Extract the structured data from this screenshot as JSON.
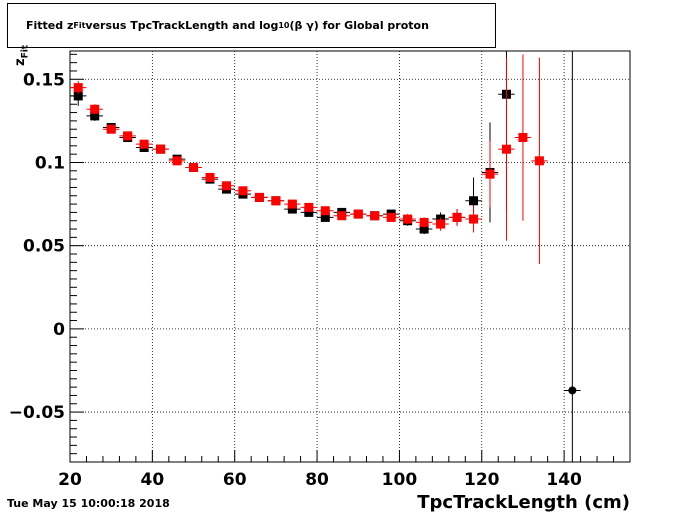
{
  "title": {
    "prefix": "Fitted  z",
    "sub": "Fit",
    "middle": "  versus TpcTrackLength and log",
    "sub2": "10",
    "suffix": " (β γ) for Global proton"
  },
  "timestamp": "Tue May 15 10:00:18 2018",
  "chart_data": {
    "type": "scatter",
    "xlabel": "TpcTrackLength (cm)",
    "ylabel_main": "z",
    "ylabel_sub": "Fit",
    "xlim": [
      20,
      156
    ],
    "ylim": [
      -0.08,
      0.167
    ],
    "x_ticks": [
      20,
      40,
      60,
      80,
      100,
      120,
      140
    ],
    "x_tick_labels": [
      "20",
      "40",
      "60",
      "80",
      "100",
      "120",
      "140"
    ],
    "y_ticks": [
      -0.05,
      0,
      0.05,
      0.1,
      0.15
    ],
    "y_tick_labels": [
      "−0.05",
      "0",
      "0.05",
      "0.1",
      "0.15"
    ],
    "grid": true,
    "series": [
      {
        "color": "#000000",
        "points": [
          {
            "x": 22,
            "y": 0.14,
            "err": 0.006
          },
          {
            "x": 26,
            "y": 0.128,
            "err": 0.003
          },
          {
            "x": 30,
            "y": 0.121,
            "err": 0.002
          },
          {
            "x": 34,
            "y": 0.115,
            "err": 0.002
          },
          {
            "x": 38,
            "y": 0.109,
            "err": 0.002
          },
          {
            "x": 42,
            "y": 0.108,
            "err": 0.002
          },
          {
            "x": 46,
            "y": 0.102,
            "err": 0.002
          },
          {
            "x": 50,
            "y": 0.097,
            "err": 0.002
          },
          {
            "x": 54,
            "y": 0.09,
            "err": 0.002
          },
          {
            "x": 58,
            "y": 0.084,
            "err": 0.002
          },
          {
            "x": 62,
            "y": 0.081,
            "err": 0.002
          },
          {
            "x": 66,
            "y": 0.079,
            "err": 0.002
          },
          {
            "x": 70,
            "y": 0.077,
            "err": 0.002
          },
          {
            "x": 74,
            "y": 0.072,
            "err": 0.002
          },
          {
            "x": 78,
            "y": 0.07,
            "err": 0.002
          },
          {
            "x": 82,
            "y": 0.067,
            "err": 0.002
          },
          {
            "x": 86,
            "y": 0.07,
            "err": 0.002
          },
          {
            "x": 90,
            "y": 0.069,
            "err": 0.002
          },
          {
            "x": 94,
            "y": 0.068,
            "err": 0.002
          },
          {
            "x": 98,
            "y": 0.069,
            "err": 0.002
          },
          {
            "x": 102,
            "y": 0.065,
            "err": 0.003
          },
          {
            "x": 106,
            "y": 0.06,
            "err": 0.003
          },
          {
            "x": 110,
            "y": 0.066,
            "err": 0.004
          },
          {
            "x": 114,
            "y": 0.067,
            "err": 0.005
          },
          {
            "x": 118,
            "y": 0.077,
            "err": 0.014
          },
          {
            "x": 122,
            "y": 0.094,
            "err": 0.03
          },
          {
            "x": 126,
            "y": 0.141,
            "err": 0.07
          },
          {
            "x": 142,
            "y": -0.037,
            "err": 0.26
          }
        ]
      },
      {
        "color": "#ff0000",
        "points": [
          {
            "x": 22,
            "y": 0.145,
            "err": 0.004
          },
          {
            "x": 26,
            "y": 0.132,
            "err": 0.003
          },
          {
            "x": 30,
            "y": 0.12,
            "err": 0.002
          },
          {
            "x": 34,
            "y": 0.116,
            "err": 0.002
          },
          {
            "x": 38,
            "y": 0.111,
            "err": 0.002
          },
          {
            "x": 42,
            "y": 0.108,
            "err": 0.002
          },
          {
            "x": 46,
            "y": 0.101,
            "err": 0.002
          },
          {
            "x": 50,
            "y": 0.097,
            "err": 0.002
          },
          {
            "x": 54,
            "y": 0.091,
            "err": 0.002
          },
          {
            "x": 58,
            "y": 0.086,
            "err": 0.002
          },
          {
            "x": 62,
            "y": 0.083,
            "err": 0.002
          },
          {
            "x": 66,
            "y": 0.079,
            "err": 0.002
          },
          {
            "x": 70,
            "y": 0.077,
            "err": 0.002
          },
          {
            "x": 74,
            "y": 0.075,
            "err": 0.002
          },
          {
            "x": 78,
            "y": 0.073,
            "err": 0.002
          },
          {
            "x": 82,
            "y": 0.071,
            "err": 0.002
          },
          {
            "x": 86,
            "y": 0.068,
            "err": 0.002
          },
          {
            "x": 90,
            "y": 0.069,
            "err": 0.002
          },
          {
            "x": 94,
            "y": 0.068,
            "err": 0.002
          },
          {
            "x": 98,
            "y": 0.067,
            "err": 0.002
          },
          {
            "x": 102,
            "y": 0.066,
            "err": 0.003
          },
          {
            "x": 106,
            "y": 0.064,
            "err": 0.003
          },
          {
            "x": 110,
            "y": 0.063,
            "err": 0.004
          },
          {
            "x": 114,
            "y": 0.067,
            "err": 0.005
          },
          {
            "x": 118,
            "y": 0.066,
            "err": 0.008
          },
          {
            "x": 122,
            "y": 0.093,
            "err": 0.02
          },
          {
            "x": 126,
            "y": 0.108,
            "err": 0.055
          },
          {
            "x": 130,
            "y": 0.115,
            "err": 0.05
          },
          {
            "x": 134,
            "y": 0.101,
            "err": 0.062
          }
        ]
      }
    ]
  }
}
